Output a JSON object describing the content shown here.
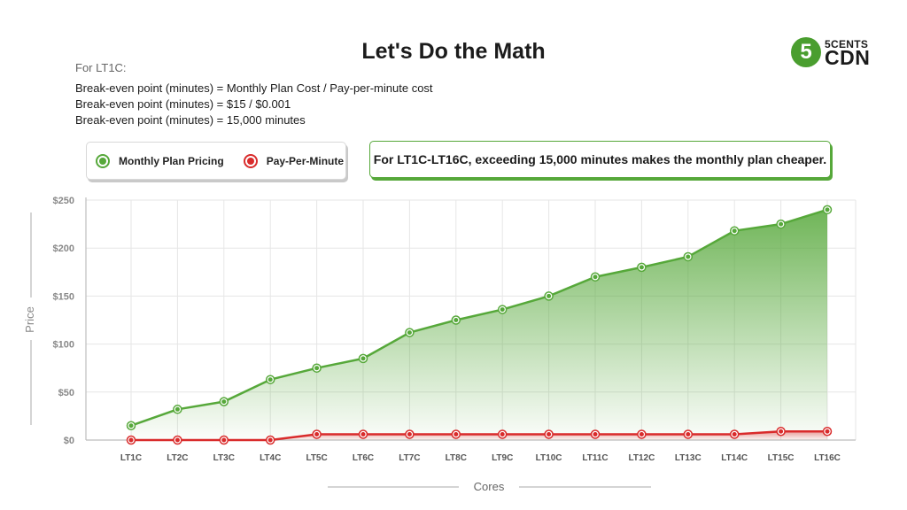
{
  "title": "Let's Do the Math",
  "logo": {
    "badge": "5",
    "top": "5CENTS",
    "bottom": "CDN"
  },
  "calculation": {
    "subtitle": "For LT1C:",
    "lines": [
      "Break-even point (minutes) = Monthly Plan Cost / Pay-per-minute cost",
      "Break-even point (minutes) = $15 / $0.001",
      "Break-even point (minutes) = 15,000 minutes"
    ]
  },
  "callout": "For LT1C-LT16C, exceeding 15,000 minutes makes the monthly plan cheaper.",
  "colors": {
    "green": "#56a83a",
    "red": "#d92b2b"
  },
  "chart_data": {
    "type": "area",
    "xlabel": "Cores",
    "ylabel": "Price",
    "categories": [
      "LT1C",
      "LT2C",
      "LT3C",
      "LT4C",
      "LT5C",
      "LT6C",
      "LT7C",
      "LT8C",
      "LT9C",
      "LT10C",
      "LT11C",
      "LT12C",
      "LT13C",
      "LT14C",
      "LT15C",
      "LT16C"
    ],
    "ylim": [
      0,
      250
    ],
    "yticks": [
      0,
      50,
      100,
      150,
      200,
      250
    ],
    "ytick_labels": [
      "$0",
      "$50",
      "$100",
      "$150",
      "$200",
      "$250"
    ],
    "grid": true,
    "legend_position": "top-left",
    "series": [
      {
        "name": "Monthly Plan Pricing",
        "color": "#56a83a",
        "values": [
          15,
          32,
          40,
          63,
          75,
          85,
          112,
          125,
          136,
          150,
          170,
          180,
          191,
          218,
          225,
          240
        ]
      },
      {
        "name": "Pay-Per-Minute",
        "color": "#d92b2b",
        "values": [
          0,
          0,
          0,
          0,
          6,
          6,
          6,
          6,
          6,
          6,
          6,
          6,
          6,
          6,
          9,
          9
        ]
      }
    ]
  }
}
